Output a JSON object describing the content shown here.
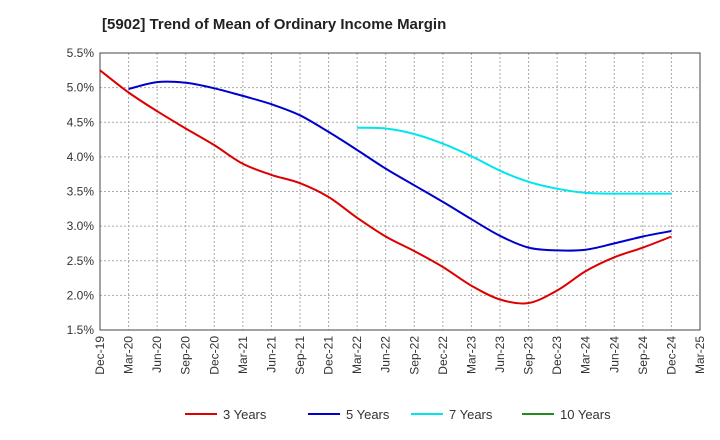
{
  "chart_data": {
    "type": "line",
    "title": "[5902]  Trend of Mean of Ordinary Income Margin",
    "xlabel": "",
    "ylabel": "",
    "ylim": [
      1.5,
      5.5
    ],
    "yticks": [
      "1.5%",
      "2.0%",
      "2.5%",
      "3.0%",
      "3.5%",
      "4.0%",
      "4.5%",
      "5.0%",
      "5.5%"
    ],
    "categories": [
      "Dec-19",
      "Mar-20",
      "Jun-20",
      "Sep-20",
      "Dec-20",
      "Mar-21",
      "Jun-21",
      "Sep-21",
      "Dec-21",
      "Mar-22",
      "Jun-22",
      "Sep-22",
      "Dec-22",
      "Mar-23",
      "Jun-23",
      "Sep-23",
      "Dec-23",
      "Mar-24",
      "Jun-24",
      "Sep-24",
      "Dec-24",
      "Mar-25"
    ],
    "grid": true,
    "legend_position": "bottom",
    "series": [
      {
        "name": "3 Years",
        "color": "#dd0000",
        "values": [
          5.25,
          4.93,
          4.66,
          4.41,
          4.17,
          3.9,
          3.74,
          3.62,
          3.42,
          3.12,
          2.85,
          2.64,
          2.41,
          2.14,
          1.94,
          1.89,
          2.07,
          2.35,
          2.55,
          2.69,
          2.85,
          null
        ]
      },
      {
        "name": "5 Years",
        "color": "#0000cc",
        "values": [
          null,
          4.98,
          5.08,
          5.07,
          4.99,
          4.88,
          4.76,
          4.6,
          4.36,
          4.1,
          3.83,
          3.59,
          3.35,
          3.1,
          2.86,
          2.69,
          2.65,
          2.66,
          2.75,
          2.85,
          2.93,
          null
        ]
      },
      {
        "name": "7 Years",
        "color": "#00e5ee",
        "values": [
          null,
          null,
          null,
          null,
          null,
          null,
          null,
          null,
          null,
          4.42,
          4.41,
          4.33,
          4.19,
          4.01,
          3.8,
          3.64,
          3.54,
          3.48,
          3.47,
          3.47,
          3.47,
          null
        ]
      },
      {
        "name": "10 Years",
        "color": "#228b22",
        "values": [
          null,
          null,
          null,
          null,
          null,
          null,
          null,
          null,
          null,
          null,
          null,
          null,
          null,
          null,
          null,
          null,
          null,
          null,
          null,
          null,
          null,
          null
        ]
      }
    ]
  }
}
